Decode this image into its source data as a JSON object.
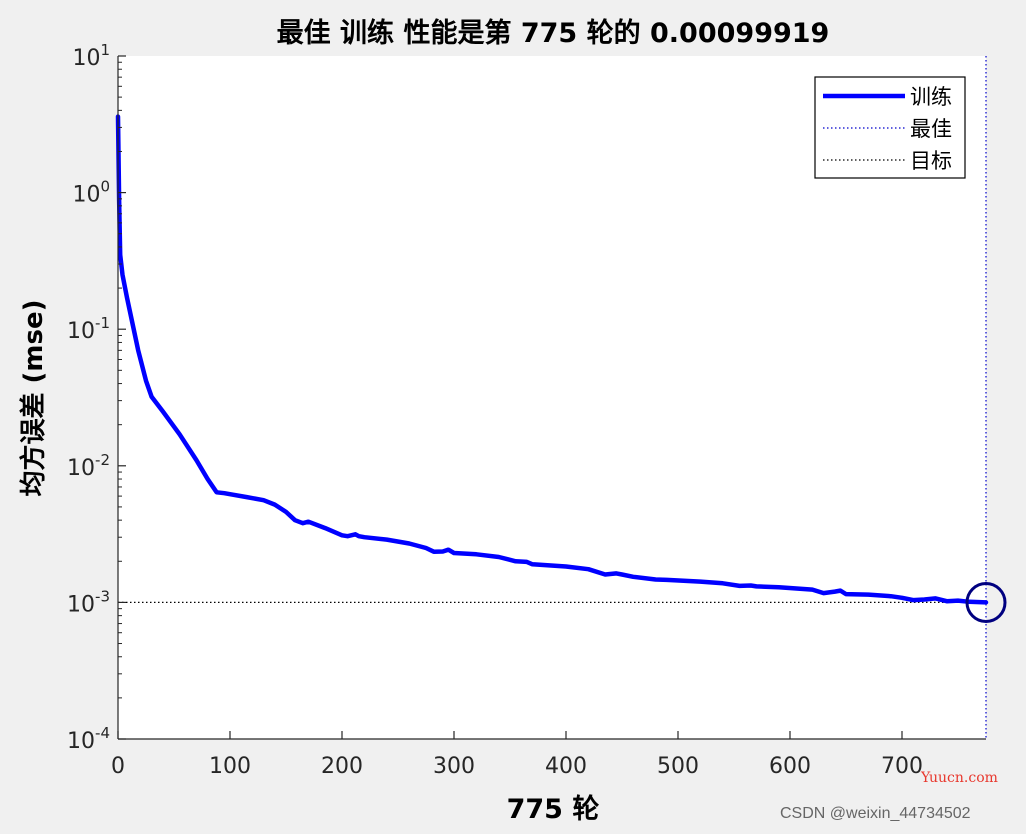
{
  "chart_data": {
    "type": "line",
    "title": "最佳 训练 性能是第 775 轮的 0.00099919",
    "xlabel": "775 轮",
    "ylabel": "均方误差 (mse)",
    "xlim": [
      0,
      775
    ],
    "ylim": [
      0.0001,
      10
    ],
    "yscale": "log",
    "x_ticks": [
      0,
      100,
      200,
      300,
      400,
      500,
      600,
      700
    ],
    "y_ticks": [
      {
        "value": 10,
        "base": "10",
        "exp": "1"
      },
      {
        "value": 1,
        "base": "10",
        "exp": "0"
      },
      {
        "value": 0.1,
        "base": "10",
        "exp": "-1"
      },
      {
        "value": 0.01,
        "base": "10",
        "exp": "-2"
      },
      {
        "value": 0.001,
        "base": "10",
        "exp": "-3"
      },
      {
        "value": 0.0001,
        "base": "10",
        "exp": "-4"
      }
    ],
    "grid": false,
    "legend_position": "top-right",
    "series": [
      {
        "name": "训练",
        "color": "#0000ff",
        "style": "solid",
        "x": [
          0,
          1,
          2,
          4,
          8,
          12,
          18,
          25,
          30,
          40,
          55,
          70,
          80,
          88,
          95,
          100,
          115,
          130,
          140,
          150,
          158,
          165,
          170,
          185,
          200,
          205,
          212,
          215,
          220,
          240,
          260,
          275,
          282,
          290,
          295,
          300,
          320,
          340,
          355,
          365,
          370,
          380,
          400,
          420,
          435,
          445,
          450,
          460,
          480,
          490,
          520,
          540,
          555,
          565,
          570,
          590,
          620,
          630,
          640,
          645,
          650,
          670,
          690,
          700,
          710,
          720,
          730,
          740,
          750,
          760,
          775
        ],
        "y": [
          3.6,
          0.9,
          0.35,
          0.25,
          0.17,
          0.12,
          0.07,
          0.042,
          0.032,
          0.025,
          0.017,
          0.011,
          0.008,
          0.0064,
          0.0063,
          0.0062,
          0.0059,
          0.0056,
          0.0052,
          0.0046,
          0.004,
          0.0038,
          0.0039,
          0.0035,
          0.0031,
          0.00305,
          0.00315,
          0.00305,
          0.003,
          0.00288,
          0.0027,
          0.0025,
          0.00235,
          0.00236,
          0.00243,
          0.0023,
          0.00225,
          0.00215,
          0.002,
          0.00198,
          0.0019,
          0.00188,
          0.00183,
          0.00175,
          0.0016,
          0.00163,
          0.0016,
          0.00154,
          0.00147,
          0.00146,
          0.00142,
          0.00138,
          0.00132,
          0.00133,
          0.00131,
          0.00129,
          0.00124,
          0.00117,
          0.0012,
          0.00122,
          0.00115,
          0.00114,
          0.00111,
          0.00108,
          0.00104,
          0.00105,
          0.00107,
          0.00102,
          0.00103,
          0.00101,
          0.00099919
        ]
      },
      {
        "name": "最佳",
        "color": "#0000cc",
        "style": "dotted",
        "note": "vertical line at x = 775 with circle marker at (775, 0.00099919)"
      },
      {
        "name": "目标",
        "color": "#000000",
        "style": "dotted",
        "note": "horizontal line at y = 0.001"
      }
    ],
    "best_point": {
      "x": 775,
      "y": 0.00099919
    }
  },
  "watermarks": {
    "site": "Yuucn.com",
    "author": "CSDN @weixin_44734502"
  }
}
